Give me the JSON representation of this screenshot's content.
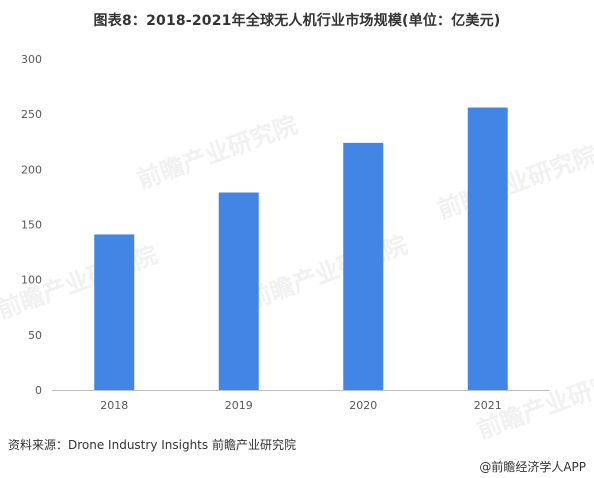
{
  "title": "图表8：2018-2021年全球无人机行业市场规模(单位：亿美元)",
  "source": "资料来源：Drone Industry Insights 前瞻产业研究院",
  "footer": "@前瞻经济学人APP",
  "watermark": "前瞻产业研究院",
  "colors": {
    "bar": "#4285e4",
    "axis": "#bfbfbf",
    "tick_text": "#595959"
  },
  "chart_data": {
    "type": "bar",
    "categories": [
      "2018",
      "2019",
      "2020",
      "2021"
    ],
    "values": [
      141,
      179,
      224,
      256
    ],
    "title": "图表8：2018-2021年全球无人机行业市场规模(单位：亿美元)",
    "xlabel": "",
    "ylabel": "",
    "ylim": [
      0,
      300
    ],
    "yticks": [
      0,
      50,
      100,
      150,
      200,
      250,
      300
    ],
    "grid": false,
    "legend": "none"
  }
}
